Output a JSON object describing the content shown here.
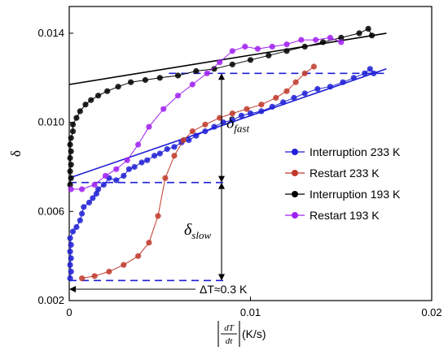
{
  "chart_data": {
    "type": "scatter",
    "ylabel": "δ",
    "xlabel_unit": "(K/s)",
    "xlabel_numerator": "dT",
    "xlabel_denominator": "dt",
    "xlim": [
      0,
      0.02
    ],
    "ylim": [
      0.002,
      0.0152
    ],
    "xticks": [
      0,
      0.01,
      0.02
    ],
    "xtick_labels": [
      "0",
      "0.01",
      "0.02"
    ],
    "yticks": [
      0.002,
      0.006,
      0.01,
      0.014
    ],
    "ytick_labels": [
      "0.002",
      "0.006",
      "0.010",
      "0.014"
    ],
    "grid": false,
    "legend_position": "right",
    "series": [
      {
        "name": "Interruption 233 K",
        "color": "#1f1fd6",
        "points": [
          [
            5e-05,
            0.003
          ],
          [
            0.0001,
            0.0033
          ],
          [
            5e-05,
            0.0036
          ],
          [
            0.0001,
            0.0039
          ],
          [
            5e-05,
            0.0042
          ],
          [
            0.0001,
            0.0045
          ],
          [
            5e-05,
            0.0048
          ],
          [
            0.0002,
            0.0051
          ],
          [
            0.0004,
            0.0053
          ],
          [
            0.0006,
            0.0056
          ],
          [
            0.0007,
            0.0059
          ],
          [
            0.0008,
            0.0062
          ],
          [
            0.0011,
            0.0064
          ],
          [
            0.0013,
            0.0066
          ],
          [
            0.0015,
            0.0068
          ],
          [
            0.0016,
            0.007
          ],
          [
            0.0019,
            0.0072
          ],
          [
            0.0022,
            0.0075
          ],
          [
            0.0026,
            0.0074
          ],
          [
            0.003,
            0.0076
          ],
          [
            0.0033,
            0.0079
          ],
          [
            0.0036,
            0.008
          ],
          [
            0.004,
            0.0082
          ],
          [
            0.0043,
            0.0083
          ],
          [
            0.0047,
            0.0085
          ],
          [
            0.005,
            0.0086
          ],
          [
            0.0054,
            0.0088
          ],
          [
            0.0058,
            0.0089
          ],
          [
            0.0062,
            0.0091
          ],
          [
            0.0066,
            0.0092
          ],
          [
            0.007,
            0.0094
          ],
          [
            0.0075,
            0.0096
          ],
          [
            0.008,
            0.0098
          ],
          [
            0.0085,
            0.01
          ],
          [
            0.009,
            0.0101
          ],
          [
            0.0095,
            0.0103
          ],
          [
            0.01,
            0.0104
          ],
          [
            0.0106,
            0.0105
          ],
          [
            0.0112,
            0.0107
          ],
          [
            0.0118,
            0.0109
          ],
          [
            0.0124,
            0.0111
          ],
          [
            0.013,
            0.0113
          ],
          [
            0.0137,
            0.0115
          ],
          [
            0.0144,
            0.0116
          ],
          [
            0.0151,
            0.0118
          ],
          [
            0.0157,
            0.012
          ],
          [
            0.0163,
            0.0122
          ],
          [
            0.0166,
            0.0124
          ],
          [
            0.0168,
            0.0122
          ]
        ],
        "trend": [
          [
            0,
            0.0075
          ],
          [
            0.0175,
            0.0124
          ]
        ]
      },
      {
        "name": "Restart 233 K",
        "color": "#c0392b",
        "points": [
          [
            0.0007,
            0.003
          ],
          [
            0.0014,
            0.0031
          ],
          [
            0.0022,
            0.0033
          ],
          [
            0.003,
            0.0036
          ],
          [
            0.0038,
            0.004
          ],
          [
            0.0044,
            0.0046
          ],
          [
            0.0049,
            0.0058
          ],
          [
            0.0053,
            0.0075
          ],
          [
            0.0058,
            0.0085
          ],
          [
            0.0063,
            0.0092
          ],
          [
            0.0068,
            0.0096
          ],
          [
            0.0075,
            0.0099
          ],
          [
            0.0083,
            0.0102
          ],
          [
            0.009,
            0.0104
          ],
          [
            0.0098,
            0.0106
          ],
          [
            0.0106,
            0.0108
          ],
          [
            0.0114,
            0.0111
          ],
          [
            0.012,
            0.0114
          ],
          [
            0.0125,
            0.0118
          ],
          [
            0.013,
            0.0122
          ],
          [
            0.0135,
            0.0125
          ]
        ]
      },
      {
        "name": "Interruption 193 K",
        "color": "#000000",
        "points": [
          [
            5e-05,
            0.0072
          ],
          [
            0.0001,
            0.0075
          ],
          [
            5e-05,
            0.0078
          ],
          [
            0.0001,
            0.0081
          ],
          [
            5e-05,
            0.0084
          ],
          [
            0.0001,
            0.0087
          ],
          [
            5e-05,
            0.009
          ],
          [
            0.0001,
            0.0093
          ],
          [
            0.0002,
            0.0096
          ],
          [
            0.0002,
            0.0099
          ],
          [
            0.0004,
            0.0102
          ],
          [
            0.0006,
            0.0105
          ],
          [
            0.0009,
            0.0108
          ],
          [
            0.0012,
            0.011
          ],
          [
            0.0016,
            0.0112
          ],
          [
            0.0021,
            0.0114
          ],
          [
            0.0027,
            0.0116
          ],
          [
            0.0034,
            0.0118
          ],
          [
            0.0042,
            0.0119
          ],
          [
            0.005,
            0.012
          ],
          [
            0.006,
            0.0121
          ],
          [
            0.007,
            0.0123
          ],
          [
            0.008,
            0.0124
          ],
          [
            0.009,
            0.0126
          ],
          [
            0.01,
            0.0128
          ],
          [
            0.011,
            0.013
          ],
          [
            0.012,
            0.0132
          ],
          [
            0.013,
            0.0134
          ],
          [
            0.014,
            0.0136
          ],
          [
            0.015,
            0.0138
          ],
          [
            0.016,
            0.014
          ],
          [
            0.0165,
            0.0142
          ],
          [
            0.0167,
            0.0139
          ]
        ],
        "trend": [
          [
            0,
            0.0117
          ],
          [
            0.0175,
            0.014
          ]
        ]
      },
      {
        "name": "Restart 193 K",
        "color": "#a020f0",
        "points": [
          [
            0.0001,
            0.007
          ],
          [
            0.0007,
            0.007
          ],
          [
            0.0014,
            0.0072
          ],
          [
            0.002,
            0.0076
          ],
          [
            0.0026,
            0.0079
          ],
          [
            0.0032,
            0.0083
          ],
          [
            0.0038,
            0.009
          ],
          [
            0.0044,
            0.0098
          ],
          [
            0.0052,
            0.0106
          ],
          [
            0.006,
            0.0112
          ],
          [
            0.0068,
            0.0117
          ],
          [
            0.0076,
            0.0122
          ],
          [
            0.0083,
            0.0127
          ],
          [
            0.009,
            0.0132
          ],
          [
            0.0097,
            0.0134
          ],
          [
            0.0104,
            0.0133
          ],
          [
            0.0112,
            0.0134
          ],
          [
            0.012,
            0.0135
          ],
          [
            0.0128,
            0.0137
          ],
          [
            0.0136,
            0.0137
          ],
          [
            0.0144,
            0.0138
          ],
          [
            0.015,
            0.0136
          ]
        ]
      }
    ],
    "reference_lines": [
      {
        "from": [
          0.0055,
          0.0122
        ],
        "to": [
          0.0175,
          0.0122
        ],
        "color": "#1f1fd6"
      },
      {
        "from": [
          0,
          0.0073
        ],
        "to": [
          0.0085,
          0.0073
        ],
        "color": "#1f1fd6"
      },
      {
        "from": [
          0,
          0.0029
        ],
        "to": [
          0.0085,
          0.0029
        ],
        "color": "#1f1fd6"
      }
    ],
    "annotations": {
      "delta_fast_main": "δ",
      "delta_fast_sub": "fast",
      "delta_slow_main": "δ",
      "delta_slow_sub": "slow",
      "delta_t_label": "ΔT≈0.3 K"
    }
  }
}
